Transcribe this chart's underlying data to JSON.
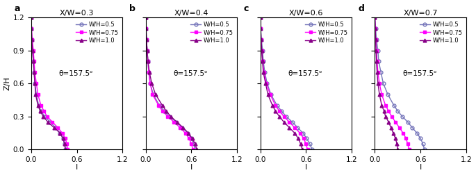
{
  "panels": [
    {
      "label": "a",
      "title": "X/W=0.3",
      "theta_text": "θ=157.5ᵒ",
      "series": [
        {
          "wh": "W/H=0.5",
          "color": "#7777bb",
          "marker": "o",
          "markerfacecolor": "none",
          "z": [
            0.0,
            0.05,
            0.1,
            0.15,
            0.2,
            0.25,
            0.3,
            0.35,
            0.4,
            0.5,
            0.6,
            0.7,
            0.8,
            0.9,
            1.0,
            1.1,
            1.2
          ],
          "I": [
            0.45,
            0.44,
            0.42,
            0.38,
            0.32,
            0.25,
            0.18,
            0.13,
            0.1,
            0.07,
            0.05,
            0.04,
            0.03,
            0.02,
            0.01,
            0.005,
            0.0
          ]
        },
        {
          "wh": "W/H=0.75",
          "color": "#ff00ff",
          "marker": "s",
          "markerfacecolor": "#ff00ff",
          "z": [
            0.0,
            0.05,
            0.1,
            0.15,
            0.2,
            0.25,
            0.3,
            0.35,
            0.4,
            0.5,
            0.6,
            0.7,
            0.8,
            0.9,
            1.0,
            1.1,
            1.2
          ],
          "I": [
            0.48,
            0.47,
            0.45,
            0.41,
            0.35,
            0.28,
            0.21,
            0.17,
            0.13,
            0.09,
            0.07,
            0.05,
            0.04,
            0.03,
            0.015,
            0.005,
            0.0
          ]
        },
        {
          "wh": "W/H=1.0",
          "color": "#880088",
          "marker": "^",
          "markerfacecolor": "#880088",
          "z": [
            0.0,
            0.05,
            0.1,
            0.15,
            0.2,
            0.25,
            0.3,
            0.35,
            0.4,
            0.5,
            0.6,
            0.7,
            0.8,
            0.9,
            1.0,
            1.1,
            1.2
          ],
          "I": [
            0.45,
            0.44,
            0.42,
            0.38,
            0.3,
            0.22,
            0.16,
            0.12,
            0.09,
            0.06,
            0.05,
            0.04,
            0.03,
            0.02,
            0.01,
            0.005,
            0.0
          ]
        }
      ]
    },
    {
      "label": "b",
      "title": "X/W=0.4",
      "theta_text": "θ=157.5ᵒ",
      "series": [
        {
          "wh": "W/H=0.5",
          "color": "#7777bb",
          "marker": "o",
          "markerfacecolor": "none",
          "z": [
            0.0,
            0.05,
            0.1,
            0.15,
            0.2,
            0.25,
            0.3,
            0.35,
            0.4,
            0.5,
            0.6,
            0.7,
            0.8,
            0.9,
            1.0,
            1.1,
            1.2
          ],
          "I": [
            0.65,
            0.63,
            0.6,
            0.55,
            0.48,
            0.4,
            0.31,
            0.24,
            0.18,
            0.1,
            0.06,
            0.04,
            0.03,
            0.02,
            0.01,
            0.005,
            0.0
          ]
        },
        {
          "wh": "W/H=0.75",
          "color": "#ff00ff",
          "marker": "s",
          "markerfacecolor": "#ff00ff",
          "z": [
            0.0,
            0.05,
            0.1,
            0.15,
            0.2,
            0.25,
            0.3,
            0.35,
            0.4,
            0.5,
            0.6,
            0.7,
            0.8,
            0.9,
            1.0,
            1.1,
            1.2
          ],
          "I": [
            0.62,
            0.6,
            0.57,
            0.52,
            0.45,
            0.37,
            0.29,
            0.22,
            0.17,
            0.09,
            0.06,
            0.04,
            0.03,
            0.02,
            0.01,
            0.005,
            0.0
          ]
        },
        {
          "wh": "W/H=1.0",
          "color": "#880088",
          "marker": "^",
          "markerfacecolor": "#880088",
          "z": [
            0.0,
            0.05,
            0.1,
            0.15,
            0.2,
            0.25,
            0.3,
            0.35,
            0.4,
            0.5,
            0.6,
            0.7,
            0.8,
            0.9,
            1.0,
            1.1,
            1.2
          ],
          "I": [
            0.67,
            0.65,
            0.61,
            0.56,
            0.49,
            0.41,
            0.33,
            0.27,
            0.22,
            0.13,
            0.08,
            0.05,
            0.03,
            0.02,
            0.01,
            0.005,
            0.0
          ]
        }
      ]
    },
    {
      "label": "c",
      "title": "X/W=0.6",
      "theta_text": "θ=157.5ᵒ",
      "series": [
        {
          "wh": "W/H=0.5",
          "color": "#7777bb",
          "marker": "o",
          "markerfacecolor": "none",
          "z": [
            0.0,
            0.05,
            0.1,
            0.15,
            0.2,
            0.25,
            0.3,
            0.35,
            0.4,
            0.5,
            0.6,
            0.7,
            0.8,
            0.9,
            1.0,
            1.1,
            1.2
          ],
          "I": [
            0.68,
            0.65,
            0.61,
            0.56,
            0.49,
            0.42,
            0.34,
            0.28,
            0.22,
            0.14,
            0.09,
            0.06,
            0.04,
            0.03,
            0.015,
            0.005,
            0.0
          ]
        },
        {
          "wh": "W/H=0.75",
          "color": "#ff00ff",
          "marker": "s",
          "markerfacecolor": "#ff00ff",
          "z": [
            0.0,
            0.05,
            0.1,
            0.15,
            0.2,
            0.25,
            0.3,
            0.35,
            0.4,
            0.5,
            0.6,
            0.7,
            0.8,
            0.9,
            1.0,
            1.1,
            1.2
          ],
          "I": [
            0.62,
            0.6,
            0.57,
            0.52,
            0.45,
            0.38,
            0.31,
            0.25,
            0.2,
            0.13,
            0.08,
            0.05,
            0.03,
            0.02,
            0.01,
            0.005,
            0.0
          ]
        },
        {
          "wh": "W/H=1.0",
          "color": "#880088",
          "marker": "^",
          "markerfacecolor": "#880088",
          "z": [
            0.0,
            0.05,
            0.1,
            0.15,
            0.2,
            0.25,
            0.3,
            0.35,
            0.4,
            0.5,
            0.6,
            0.7,
            0.8,
            0.9,
            1.0,
            1.1,
            1.2
          ],
          "I": [
            0.55,
            0.53,
            0.5,
            0.45,
            0.38,
            0.31,
            0.25,
            0.2,
            0.16,
            0.1,
            0.07,
            0.04,
            0.03,
            0.02,
            0.01,
            0.005,
            0.0
          ]
        }
      ]
    },
    {
      "label": "d",
      "title": "X/W=0.7",
      "theta_text": "θ=157.5ᵒ",
      "series": [
        {
          "wh": "W/H=0.5",
          "color": "#7777bb",
          "marker": "o",
          "markerfacecolor": "none",
          "z": [
            0.0,
            0.05,
            0.1,
            0.15,
            0.2,
            0.25,
            0.3,
            0.35,
            0.4,
            0.5,
            0.6,
            0.7,
            0.8,
            0.9,
            1.0,
            1.1,
            1.2
          ],
          "I": [
            0.65,
            0.63,
            0.6,
            0.55,
            0.49,
            0.43,
            0.36,
            0.3,
            0.25,
            0.17,
            0.11,
            0.08,
            0.05,
            0.04,
            0.02,
            0.01,
            0.0
          ]
        },
        {
          "wh": "W/H=0.75",
          "color": "#ff00ff",
          "marker": "s",
          "markerfacecolor": "#ff00ff",
          "z": [
            0.0,
            0.05,
            0.1,
            0.15,
            0.2,
            0.25,
            0.3,
            0.35,
            0.4,
            0.5,
            0.6,
            0.7,
            0.8,
            0.9,
            1.0,
            1.1,
            1.2
          ],
          "I": [
            0.45,
            0.43,
            0.41,
            0.37,
            0.32,
            0.27,
            0.22,
            0.18,
            0.14,
            0.09,
            0.06,
            0.04,
            0.03,
            0.02,
            0.01,
            0.005,
            0.0
          ]
        },
        {
          "wh": "W/H=1.0",
          "color": "#880088",
          "marker": "^",
          "markerfacecolor": "#880088",
          "z": [
            0.0,
            0.05,
            0.1,
            0.15,
            0.2,
            0.25,
            0.3,
            0.35,
            0.4,
            0.5,
            0.6,
            0.7,
            0.8,
            0.9,
            1.0,
            1.1,
            1.2
          ],
          "I": [
            0.3,
            0.29,
            0.27,
            0.24,
            0.21,
            0.18,
            0.14,
            0.12,
            0.09,
            0.06,
            0.04,
            0.03,
            0.02,
            0.015,
            0.01,
            0.005,
            0.0
          ]
        }
      ]
    }
  ],
  "xlim": [
    0,
    1.2
  ],
  "ylim": [
    0,
    1.2
  ],
  "xlabel": "I",
  "ylabel": "Z/H",
  "xticks": [
    0,
    0.6,
    1.2
  ],
  "yticks": [
    0,
    0.3,
    0.6,
    0.9,
    1.2
  ],
  "background_color": "#ffffff"
}
